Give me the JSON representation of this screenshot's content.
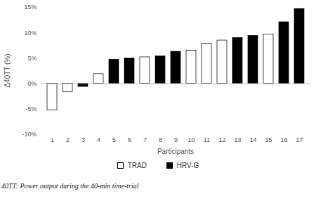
{
  "chart_data": {
    "type": "bar",
    "caption": "40TT: Power output during the 40-min time-trial",
    "x_label": "Participants",
    "y_label": "Δ40TT (%)",
    "categories": [
      "1",
      "2",
      "3",
      "4",
      "5",
      "6",
      "7",
      "8",
      "9",
      "10",
      "11",
      "12",
      "13",
      "14",
      "15",
      "16",
      "17"
    ],
    "series": [
      {
        "name": "TRAD",
        "color": "#ffffff",
        "values": [
          -5.2,
          -1.6,
          null,
          1.9,
          null,
          null,
          5.2,
          null,
          null,
          6.5,
          7.9,
          8.5,
          null,
          null,
          9.7,
          null,
          null
        ]
      },
      {
        "name": "HRV-G",
        "color": "#000000",
        "values": [
          null,
          null,
          -0.6,
          null,
          4.7,
          5.0,
          null,
          5.4,
          6.3,
          null,
          null,
          null,
          9.0,
          9.4,
          null,
          12.1,
          14.7
        ]
      }
    ],
    "ylim": [
      -10,
      15
    ],
    "yticks": [
      {
        "value": -10,
        "label": "-10%"
      },
      {
        "value": -5,
        "label": "-5%"
      },
      {
        "value": 0,
        "label": "0%"
      },
      {
        "value": 5,
        "label": "5%"
      },
      {
        "value": 10,
        "label": "10%"
      },
      {
        "value": 15,
        "label": "15%"
      }
    ],
    "grid": false,
    "legend": "bottom"
  }
}
